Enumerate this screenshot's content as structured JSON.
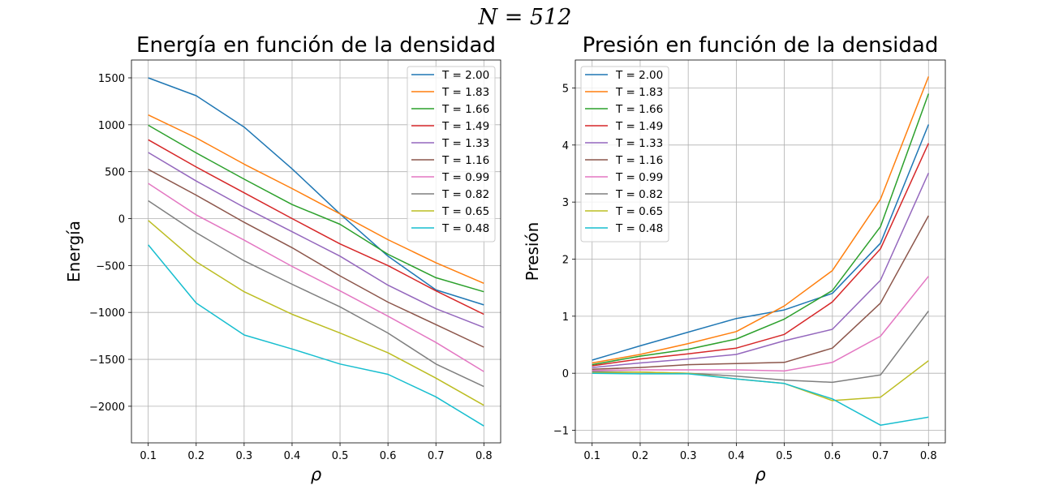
{
  "figure": {
    "suptitle": "N = 512"
  },
  "chart_data": [
    {
      "type": "line",
      "title": "Energía en función de la densidad",
      "xlabel": "ρ",
      "ylabel": "Energía",
      "x": [
        0.1,
        0.2,
        0.3,
        0.4,
        0.5,
        0.6,
        0.7,
        0.8
      ],
      "xlim": [
        0.065,
        0.835
      ],
      "ylim": [
        -2390,
        1690
      ],
      "xticks": [
        0.1,
        0.2,
        0.3,
        0.4,
        0.5,
        0.6,
        0.7,
        0.8
      ],
      "yticks": [
        -2000,
        -1500,
        -1000,
        -500,
        0,
        500,
        1000,
        1500
      ],
      "grid": true,
      "legend_position": "top-right",
      "series": [
        {
          "name": "T = 2.00",
          "color": "#1f77b4",
          "values": [
            1500,
            1310,
            975,
            530,
            50,
            -400,
            -760,
            -920
          ]
        },
        {
          "name": "T = 1.83",
          "color": "#ff7f0e",
          "values": [
            1105,
            860,
            580,
            320,
            50,
            -225,
            -470,
            -690
          ]
        },
        {
          "name": "T = 1.66",
          "color": "#2ca02c",
          "values": [
            995,
            700,
            420,
            150,
            -60,
            -380,
            -630,
            -780
          ]
        },
        {
          "name": "T = 1.49",
          "color": "#d62728",
          "values": [
            840,
            550,
            275,
            0,
            -270,
            -500,
            -770,
            -1020
          ]
        },
        {
          "name": "T = 1.33",
          "color": "#9467bd",
          "values": [
            705,
            400,
            120,
            -140,
            -400,
            -710,
            -960,
            -1160
          ]
        },
        {
          "name": "T = 1.16",
          "color": "#8c564b",
          "values": [
            525,
            250,
            -40,
            -310,
            -610,
            -890,
            -1130,
            -1370
          ]
        },
        {
          "name": "T = 0.99",
          "color": "#e377c2",
          "values": [
            375,
            40,
            -230,
            -510,
            -770,
            -1040,
            -1320,
            -1630
          ]
        },
        {
          "name": "T = 0.82",
          "color": "#7f7f7f",
          "values": [
            190,
            -150,
            -450,
            -700,
            -940,
            -1220,
            -1550,
            -1790
          ]
        },
        {
          "name": "T = 0.65",
          "color": "#bcbd22",
          "values": [
            -20,
            -460,
            -780,
            -1020,
            -1220,
            -1430,
            -1700,
            -1990
          ]
        },
        {
          "name": "T = 0.48",
          "color": "#17becf",
          "values": [
            -280,
            -900,
            -1240,
            -1390,
            -1550,
            -1660,
            -1900,
            -2210
          ]
        }
      ]
    },
    {
      "type": "line",
      "title": "Presión en función de la densidad",
      "xlabel": "ρ",
      "ylabel": "Presión",
      "x": [
        0.1,
        0.2,
        0.3,
        0.4,
        0.5,
        0.6,
        0.7,
        0.8
      ],
      "xlim": [
        0.065,
        0.835
      ],
      "ylim": [
        -1.22,
        5.49
      ],
      "xticks": [
        0.1,
        0.2,
        0.3,
        0.4,
        0.5,
        0.6,
        0.7,
        0.8
      ],
      "yticks": [
        -1,
        0,
        1,
        2,
        3,
        4,
        5
      ],
      "grid": true,
      "legend_position": "top-left",
      "series": [
        {
          "name": "T = 2.00",
          "color": "#1f77b4",
          "values": [
            0.23,
            0.48,
            0.72,
            0.96,
            1.11,
            1.4,
            2.28,
            4.36
          ]
        },
        {
          "name": "T = 1.83",
          "color": "#ff7f0e",
          "values": [
            0.18,
            0.33,
            0.52,
            0.73,
            1.18,
            1.8,
            3.05,
            5.2
          ]
        },
        {
          "name": "T = 1.66",
          "color": "#2ca02c",
          "values": [
            0.15,
            0.3,
            0.42,
            0.6,
            0.95,
            1.45,
            2.57,
            4.9
          ]
        },
        {
          "name": "T = 1.49",
          "color": "#d62728",
          "values": [
            0.13,
            0.25,
            0.34,
            0.44,
            0.68,
            1.25,
            2.18,
            4.03
          ]
        },
        {
          "name": "T = 1.33",
          "color": "#9467bd",
          "values": [
            0.1,
            0.18,
            0.25,
            0.33,
            0.57,
            0.77,
            1.63,
            3.51
          ]
        },
        {
          "name": "T = 1.16",
          "color": "#8c564b",
          "values": [
            0.07,
            0.1,
            0.15,
            0.17,
            0.19,
            0.44,
            1.23,
            2.76
          ]
        },
        {
          "name": "T = 0.99",
          "color": "#e377c2",
          "values": [
            0.05,
            0.06,
            0.06,
            0.06,
            0.04,
            0.19,
            0.65,
            1.7
          ]
        },
        {
          "name": "T = 0.82",
          "color": "#7f7f7f",
          "values": [
            0.03,
            0.02,
            0.0,
            -0.05,
            -0.12,
            -0.16,
            -0.03,
            1.09
          ]
        },
        {
          "name": "T = 0.65",
          "color": "#bcbd22",
          "values": [
            0.01,
            0.02,
            0.0,
            -0.1,
            -0.18,
            -0.48,
            -0.42,
            0.22
          ]
        },
        {
          "name": "T = 0.48",
          "color": "#17becf",
          "values": [
            0.0,
            -0.01,
            -0.01,
            -0.1,
            -0.18,
            -0.45,
            -0.91,
            -0.77
          ]
        }
      ]
    }
  ]
}
